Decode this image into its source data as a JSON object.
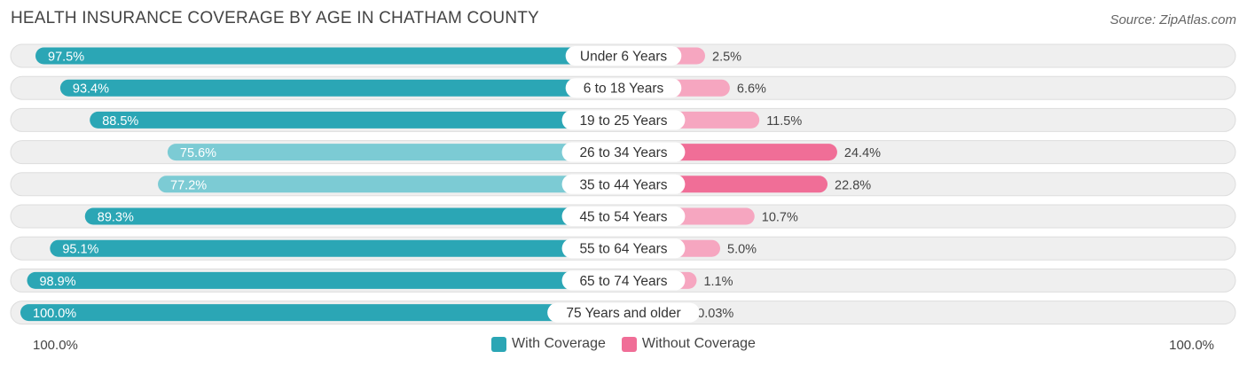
{
  "chart_data": {
    "type": "bar",
    "orientation": "horizontal-diverging",
    "title": "HEALTH INSURANCE COVERAGE BY AGE IN CHATHAM COUNTY",
    "source": "Source: ZipAtlas.com",
    "categories": [
      "Under 6 Years",
      "6 to 18 Years",
      "19 to 25 Years",
      "26 to 34 Years",
      "35 to 44 Years",
      "45 to 54 Years",
      "55 to 64 Years",
      "65 to 74 Years",
      "75 Years and older"
    ],
    "series": [
      {
        "name": "With Coverage",
        "values": [
          97.5,
          93.4,
          88.5,
          75.6,
          77.2,
          89.3,
          95.1,
          98.9,
          100.0
        ],
        "labels": [
          "97.5%",
          "93.4%",
          "88.5%",
          "75.6%",
          "77.2%",
          "89.3%",
          "95.1%",
          "98.9%",
          "100.0%"
        ]
      },
      {
        "name": "Without Coverage",
        "values": [
          2.5,
          6.6,
          11.5,
          24.4,
          22.8,
          10.7,
          5.0,
          1.1,
          0.03
        ],
        "labels": [
          "2.5%",
          "6.6%",
          "11.5%",
          "24.4%",
          "22.8%",
          "10.7%",
          "5.0%",
          "1.1%",
          "0.03%"
        ]
      }
    ],
    "axis_left_label": "100.0%",
    "axis_right_label": "100.0%",
    "legend": [
      "With Coverage",
      "Without Coverage"
    ],
    "colors": {
      "with_strong": "#2ba6b5",
      "with_light": "#7ccbd4",
      "without_strong": "#f06e97",
      "without_light": "#f6a6c0",
      "track": "#efefef",
      "track_border": "#dddddd"
    }
  }
}
